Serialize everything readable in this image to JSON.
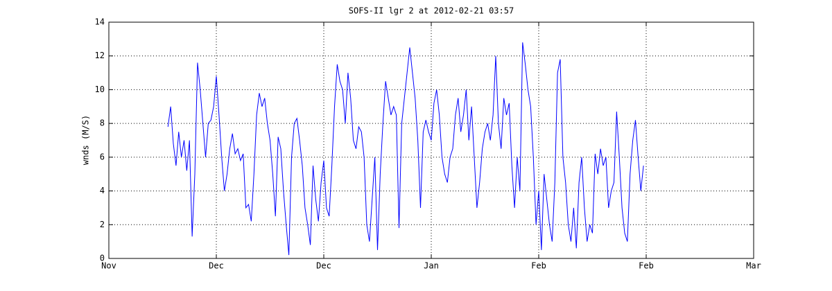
{
  "chart_data": {
    "type": "line",
    "title": "SOFS-II lgr 2 at 2012-02-21 03:57",
    "ylabel": "wnds (M/S)",
    "x": [
      22,
      23,
      24,
      25,
      26,
      27,
      28,
      29,
      30,
      31,
      32,
      33,
      34,
      35,
      36,
      37,
      38,
      39,
      40,
      41,
      42,
      43,
      44,
      45,
      46,
      47,
      48,
      49,
      50,
      51,
      52,
      53,
      54,
      55,
      56,
      57,
      58,
      59,
      60,
      61,
      62,
      63,
      64,
      65,
      66,
      67,
      68,
      69,
      70,
      71,
      72,
      73,
      74,
      75,
      76,
      77,
      78,
      79,
      80,
      81,
      82,
      83,
      84,
      85,
      86,
      87,
      88,
      89,
      90,
      91,
      92,
      93,
      94,
      95,
      96,
      97,
      98,
      99,
      100,
      101,
      102,
      103,
      104,
      105,
      106,
      107,
      108,
      109,
      110,
      111,
      112,
      113,
      114,
      115,
      116,
      117,
      118,
      119,
      120,
      121,
      122,
      123,
      124,
      125,
      126,
      127,
      128,
      129,
      130,
      131,
      132,
      133,
      134,
      135,
      136,
      137,
      138,
      139,
      140,
      141,
      142,
      143,
      144,
      145,
      146,
      147,
      148,
      149,
      150,
      151,
      152,
      153,
      154,
      155,
      156,
      157,
      158,
      159,
      160,
      161,
      162,
      163,
      164,
      165,
      166,
      167,
      168,
      169,
      170,
      171,
      172,
      173,
      174,
      175,
      176,
      177,
      178,
      179,
      180,
      181,
      182,
      183,
      184,
      185,
      186,
      187,
      188,
      189,
      190,
      191,
      192,
      193,
      194,
      195,
      196,
      197,
      198,
      199
    ],
    "series": [
      {
        "name": "wnds",
        "color": "#0000ff",
        "values": [
          7.8,
          9.0,
          6.8,
          5.5,
          7.5,
          6.0,
          7.0,
          5.2,
          7.0,
          1.3,
          5.0,
          11.6,
          10.0,
          8.0,
          6.0,
          8.0,
          8.2,
          9.0,
          10.8,
          8.5,
          6.0,
          4.0,
          5.0,
          6.5,
          7.4,
          6.2,
          6.5,
          5.8,
          6.2,
          3.0,
          3.2,
          2.2,
          5.0,
          8.5,
          9.8,
          9.0,
          9.5,
          8.0,
          7.0,
          5.0,
          2.5,
          7.2,
          6.5,
          4.0,
          2.0,
          0.2,
          6.0,
          8.0,
          8.3,
          7.0,
          5.5,
          3.0,
          2.0,
          0.8,
          5.5,
          3.5,
          2.2,
          4.5,
          5.8,
          3.0,
          2.5,
          5.5,
          9.0,
          11.5,
          10.5,
          10.0,
          8.0,
          11.0,
          9.5,
          7.0,
          6.5,
          7.8,
          7.5,
          6.0,
          2.0,
          1.0,
          3.5,
          6.0,
          0.5,
          5.0,
          8.0,
          10.5,
          9.5,
          8.5,
          9.0,
          8.5,
          1.8,
          8.0,
          9.5,
          11.0,
          12.5,
          11.0,
          9.5,
          7.0,
          3.0,
          7.5,
          8.2,
          7.5,
          7.0,
          9.2,
          10.0,
          8.5,
          6.0,
          5.0,
          4.5,
          6.0,
          6.5,
          8.5,
          9.5,
          7.5,
          8.5,
          10.0,
          7.0,
          9.0,
          6.0,
          3.0,
          4.5,
          6.5,
          7.5,
          8.0,
          7.0,
          8.5,
          12.0,
          8.0,
          6.5,
          9.5,
          8.5,
          9.2,
          5.5,
          3.0,
          6.0,
          4.0,
          12.8,
          11.5,
          10.0,
          9.0,
          6.0,
          2.0,
          4.0,
          0.5,
          5.0,
          3.5,
          2.0,
          1.0,
          4.5,
          11.0,
          11.8,
          6.0,
          4.5,
          2.0,
          1.0,
          3.0,
          0.6,
          4.5,
          6.0,
          3.0,
          1.0,
          2.0,
          1.5,
          6.2,
          5.0,
          6.5,
          5.5,
          6.0,
          3.0,
          4.0,
          4.5,
          8.7,
          6.0,
          3.0,
          1.5,
          1.0,
          5.0,
          7.0,
          8.2,
          6.0,
          4.0,
          5.5
        ]
      }
    ],
    "xlim": [
      0,
      240
    ],
    "xticks": [
      {
        "value": 0,
        "label": "Nov"
      },
      {
        "value": 40,
        "label": "Dec"
      },
      {
        "value": 80,
        "label": "Dec"
      },
      {
        "value": 120,
        "label": "Jan"
      },
      {
        "value": 160,
        "label": "Feb"
      },
      {
        "value": 200,
        "label": "Feb"
      },
      {
        "value": 240,
        "label": "Mar"
      }
    ],
    "ylim": [
      0,
      14
    ],
    "yticks": [
      0,
      2,
      4,
      6,
      8,
      10,
      12,
      14
    ],
    "grid": true
  }
}
